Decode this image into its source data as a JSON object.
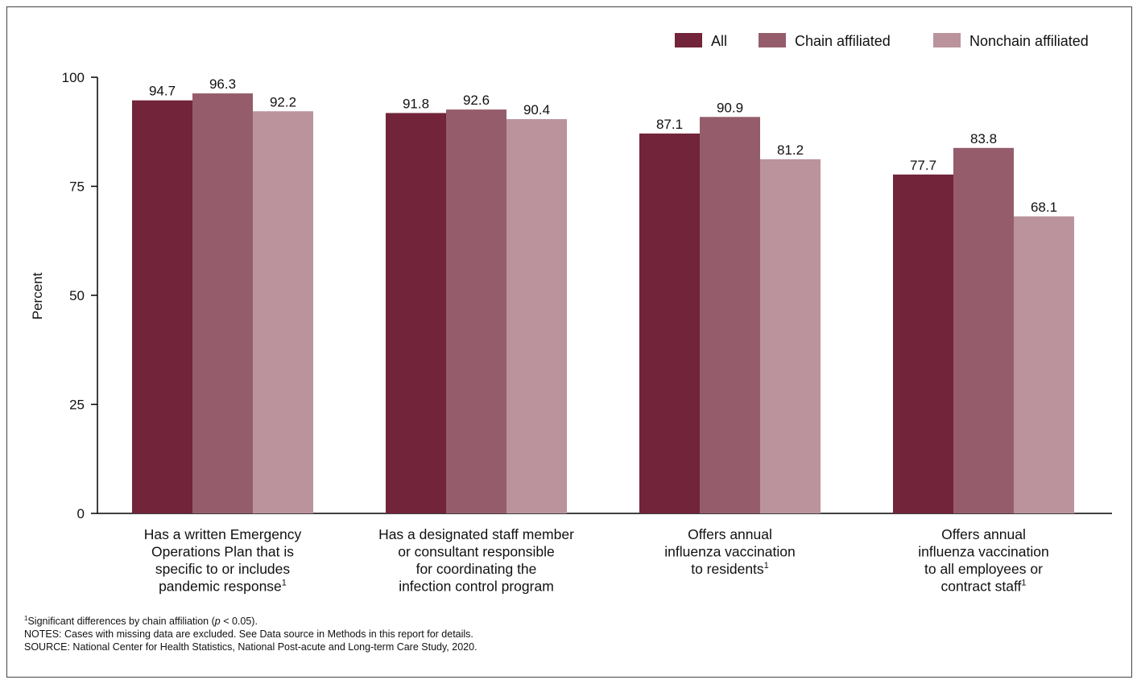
{
  "chart_data": {
    "type": "bar",
    "ylabel": "Percent",
    "ylim": [
      0,
      100
    ],
    "yticks": [
      0,
      25,
      50,
      75,
      100
    ],
    "grid": false,
    "legend_position": "top-right",
    "categories": [
      [
        "Has a written Emergency",
        "Operations Plan that is",
        "specific to or includes",
        "pandemic response"
      ],
      [
        "Has a designated staff member",
        "or consultant responsible",
        "for coordinating the",
        "infection control program"
      ],
      [
        "Offers annual",
        "influenza vaccination",
        "to residents"
      ],
      [
        "Offers annual",
        "influenza vaccination",
        "to all employees or",
        "contract staff"
      ]
    ],
    "category_superscripts": [
      "1",
      "",
      "1",
      "1"
    ],
    "series": [
      {
        "name": "All",
        "color": "#72243b",
        "values": [
          94.7,
          91.8,
          87.1,
          77.7
        ]
      },
      {
        "name": "Chain affiliated",
        "color": "#955d6b",
        "values": [
          96.3,
          92.6,
          90.9,
          83.8
        ]
      },
      {
        "name": "Nonchain affiliated",
        "color": "#ba939c",
        "values": [
          92.2,
          90.4,
          81.2,
          68.1
        ]
      }
    ]
  },
  "footnotes": {
    "note1_sup": "1",
    "note1_text_a": "Significant differences by chain affiliation (",
    "note1_p": "p",
    "note1_text_b": " < 0.05).",
    "notes": "NOTES: Cases with missing data are excluded. See Data source in Methods in this report for details.",
    "source": "SOURCE: National Center for Health Statistics, National Post-acute and Long-term Care Study, 2020."
  }
}
